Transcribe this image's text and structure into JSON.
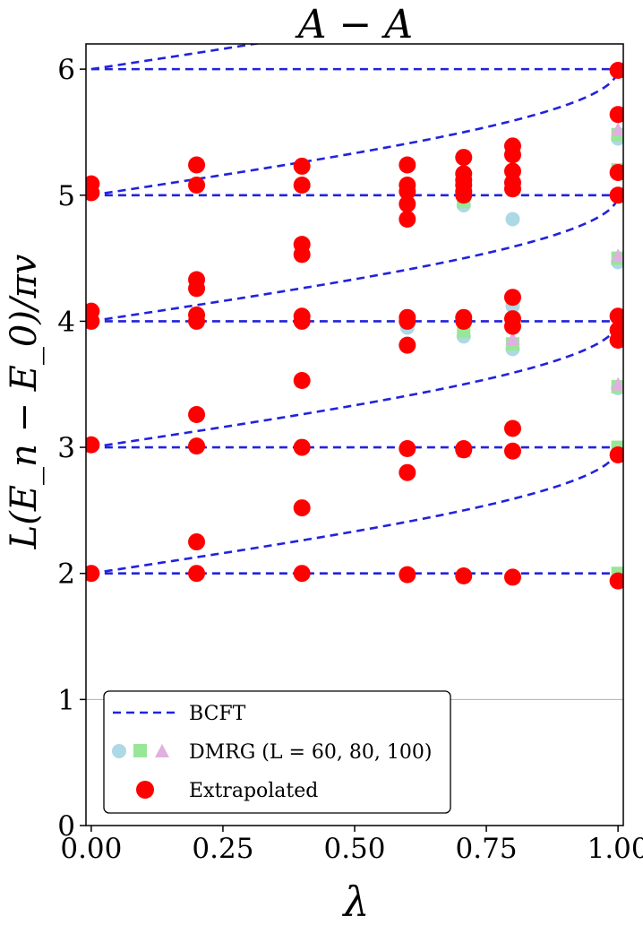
{
  "chart_data": {
    "type": "scatter",
    "title": "A − A",
    "xlabel": "λ",
    "ylabel": "L(E_n − E_0)/πv",
    "xlim": [
      -0.01,
      1.01
    ],
    "ylim": [
      0,
      6.2
    ],
    "x_ticks": [
      0.0,
      0.25,
      0.5,
      0.75,
      1.0
    ],
    "x_tick_labels": [
      "0.00",
      "0.25",
      "0.50",
      "0.75",
      "1.00"
    ],
    "y_ticks": [
      0,
      1,
      2,
      3,
      4,
      5,
      6
    ],
    "y_tick_labels": [
      "0",
      "1",
      "2",
      "3",
      "4",
      "5",
      "6"
    ],
    "grid": false,
    "legend_location": "bottom-left",
    "legend": {
      "bcft": "BCFT",
      "dmrg": "DMRG (L = 60, 80, 100)",
      "extrapolated": "Extrapolated"
    },
    "colors": {
      "bcft": "#2222dd",
      "extrapolated": "#ff0000",
      "dmrg_60": "#add8e6",
      "dmrg_80": "#98e698",
      "dmrg_100": "#e0b0e0",
      "reference_line": "#b0b0b0"
    },
    "bcft_curves": [
      {
        "name": "flat-2",
        "kind": "flat",
        "value": 2
      },
      {
        "name": "flat-3",
        "kind": "flat",
        "value": 3
      },
      {
        "name": "flat-4",
        "kind": "flat",
        "value": 4
      },
      {
        "name": "flat-5",
        "kind": "flat",
        "value": 5
      },
      {
        "name": "flat-6",
        "kind": "flat",
        "value": 6
      },
      {
        "name": "rising-from-2",
        "kind": "rising",
        "start": 2
      },
      {
        "name": "rising-from-3",
        "kind": "rising",
        "start": 3
      },
      {
        "name": "rising-from-4",
        "kind": "rising",
        "start": 4
      },
      {
        "name": "rising-from-5",
        "kind": "rising",
        "start": 5
      },
      {
        "name": "rising-from-6",
        "kind": "rising",
        "start": 6
      }
    ],
    "reference_line_y": 1,
    "extrapolated": [
      {
        "lambda": 0.0,
        "values": [
          2.0,
          3.02,
          4.0,
          4.08,
          5.02,
          5.09
        ]
      },
      {
        "lambda": 0.2,
        "values": [
          2.0,
          2.25,
          3.01,
          3.26,
          4.0,
          4.05,
          4.26,
          4.33,
          5.08,
          5.24
        ]
      },
      {
        "lambda": 0.4,
        "values": [
          2.0,
          2.52,
          3.0,
          3.53,
          4.0,
          4.04,
          4.53,
          4.61,
          5.08,
          5.23
        ]
      },
      {
        "lambda": 0.6,
        "values": [
          1.99,
          2.8,
          2.99,
          3.81,
          4.0,
          4.03,
          4.81,
          4.93,
          5.03,
          5.08,
          5.24
        ]
      },
      {
        "lambda": 0.707,
        "values": [
          1.98,
          2.98,
          2.99,
          4.0,
          4.03,
          5.0,
          5.03,
          5.08,
          5.12,
          5.17,
          5.3
        ]
      },
      {
        "lambda": 0.8,
        "values": [
          1.97,
          2.97,
          3.15,
          3.96,
          4.02,
          4.19,
          5.05,
          5.1,
          5.19,
          5.32,
          5.39
        ]
      },
      {
        "lambda": 1.0,
        "values": [
          1.94,
          2.94,
          3.85,
          3.93,
          4.04,
          5.0,
          5.18,
          5.64,
          5.99
        ]
      }
    ],
    "dmrg": [
      {
        "lambda": 0.6,
        "L": 60,
        "value": 3.95
      },
      {
        "lambda": 0.707,
        "L": 60,
        "value": 3.88
      },
      {
        "lambda": 0.707,
        "L": 60,
        "value": 4.92
      },
      {
        "lambda": 0.707,
        "L": 80,
        "value": 3.92
      },
      {
        "lambda": 0.707,
        "L": 80,
        "value": 4.95
      },
      {
        "lambda": 0.707,
        "L": 100,
        "value": 2.97
      },
      {
        "lambda": 0.8,
        "L": 60,
        "value": 3.78
      },
      {
        "lambda": 0.8,
        "L": 60,
        "value": 4.81
      },
      {
        "lambda": 0.8,
        "L": 60,
        "value": 4.12
      },
      {
        "lambda": 0.8,
        "L": 80,
        "value": 3.82
      },
      {
        "lambda": 0.8,
        "L": 100,
        "value": 3.86
      },
      {
        "lambda": 1.0,
        "L": 60,
        "value": 3.47
      },
      {
        "lambda": 1.0,
        "L": 60,
        "value": 4.47
      },
      {
        "lambda": 1.0,
        "L": 60,
        "value": 5.45
      },
      {
        "lambda": 1.0,
        "L": 80,
        "value": 3.48
      },
      {
        "lambda": 1.0,
        "L": 80,
        "value": 4.5
      },
      {
        "lambda": 1.0,
        "L": 80,
        "value": 5.48
      },
      {
        "lambda": 1.0,
        "L": 80,
        "value": 2.0
      },
      {
        "lambda": 1.0,
        "L": 80,
        "value": 3.0
      },
      {
        "lambda": 1.0,
        "L": 80,
        "value": 5.2
      },
      {
        "lambda": 1.0,
        "L": 100,
        "value": 3.5
      },
      {
        "lambda": 1.0,
        "L": 100,
        "value": 4.52
      },
      {
        "lambda": 1.0,
        "L": 100,
        "value": 5.52
      }
    ]
  }
}
